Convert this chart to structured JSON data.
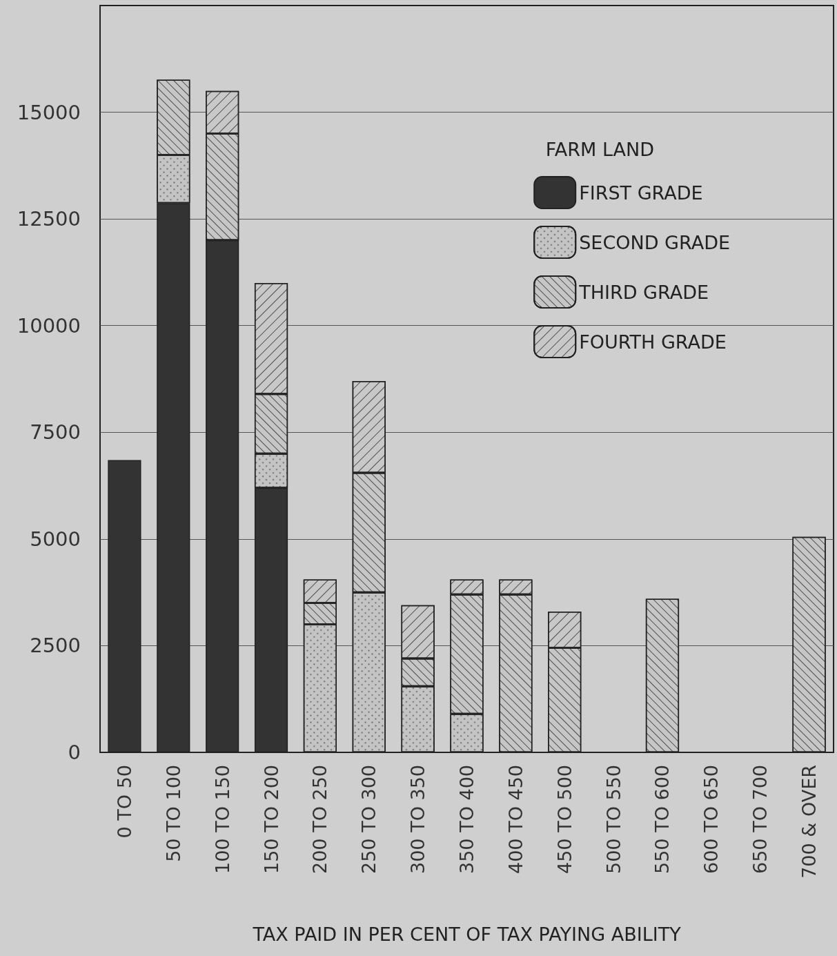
{
  "chart_data": {
    "type": "bar",
    "stacked": true,
    "xlabel": "TAX PAID IN PER CENT OF TAX PAYING ABILITY",
    "legend_title": "FARM LAND",
    "legend": "top right",
    "grid": "y",
    "categories": [
      "0 TO 50",
      "50 TO 100",
      "100 TO 150",
      "150 TO 200",
      "200 TO 250",
      "250 TO 300",
      "300 TO 350",
      "350 TO 400",
      "400 TO 450",
      "450 TO 500",
      "500 TO 550",
      "550 TO 600",
      "600 TO 650",
      "650 TO 700",
      "700 & OVER"
    ],
    "ylim": [
      0,
      17500
    ],
    "yticks": [
      0,
      2500,
      5000,
      7500,
      10000,
      12500,
      15000
    ],
    "series": [
      {
        "name": "FIRST GRADE",
        "color": "#333333",
        "values": [
          6850,
          12870,
          12000,
          6200,
          null,
          null,
          null,
          null,
          null,
          null,
          null,
          null,
          null,
          null,
          null
        ]
      },
      {
        "name": "SECOND GRADE",
        "color": "#c4c4c4",
        "values": [
          null,
          1130,
          null,
          800,
          3000,
          3750,
          1550,
          900,
          null,
          null,
          null,
          null,
          null,
          null,
          null
        ]
      },
      {
        "name": "THIRD GRADE",
        "color": "#c6c6c6",
        "values": [
          null,
          1760,
          2500,
          1400,
          500,
          2800,
          650,
          2800,
          3700,
          2450,
          null,
          3600,
          null,
          null,
          5050
        ]
      },
      {
        "name": "FOURTH GRADE",
        "color": "#c8c8c8",
        "values": [
          null,
          null,
          1000,
          2600,
          550,
          2150,
          1250,
          350,
          350,
          850,
          null,
          null,
          null,
          null,
          null
        ]
      }
    ]
  }
}
